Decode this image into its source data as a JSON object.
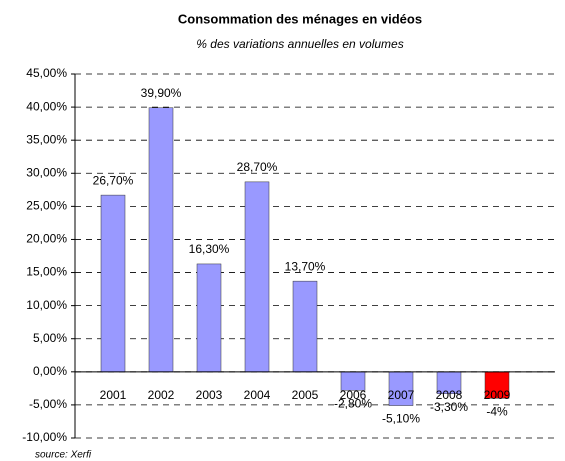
{
  "chart_data": {
    "type": "bar",
    "title": "Consommation des ménages en vidéos",
    "subtitle": "% des variations annuelles en volumes",
    "source": "source: Xerfi",
    "categories": [
      "2001",
      "2002",
      "2003",
      "2004",
      "2005",
      "2006",
      "2007",
      "2008",
      "2009"
    ],
    "values": [
      26.7,
      39.9,
      16.3,
      28.7,
      13.7,
      -2.8,
      -5.1,
      -3.3,
      -4
    ],
    "value_labels": [
      "26,70%",
      "39,90%",
      "16,30%",
      "28,70%",
      "13,70%",
      "-2,80%",
      "-5,10%",
      "-3,30%",
      "-4%"
    ],
    "colors": [
      "#9999ff",
      "#9999ff",
      "#9999ff",
      "#9999ff",
      "#9999ff",
      "#9999ff",
      "#9999ff",
      "#9999ff",
      "#ff0000"
    ],
    "ylim": [
      -10,
      45
    ],
    "yticks": [
      {
        "value": -10,
        "label": "-10,00%"
      },
      {
        "value": -5,
        "label": "-5,00%"
      },
      {
        "value": 0,
        "label": "0,00%"
      },
      {
        "value": 5,
        "label": "5,00%"
      },
      {
        "value": 10,
        "label": "10,00%"
      },
      {
        "value": 15,
        "label": "15,00%"
      },
      {
        "value": 20,
        "label": "20,00%"
      },
      {
        "value": 25,
        "label": "25,00%"
      },
      {
        "value": 30,
        "label": "30,00%"
      },
      {
        "value": 35,
        "label": "35,00%"
      },
      {
        "value": 40,
        "label": "40,00%"
      },
      {
        "value": 45,
        "label": "45,00%"
      }
    ],
    "grid": true
  }
}
